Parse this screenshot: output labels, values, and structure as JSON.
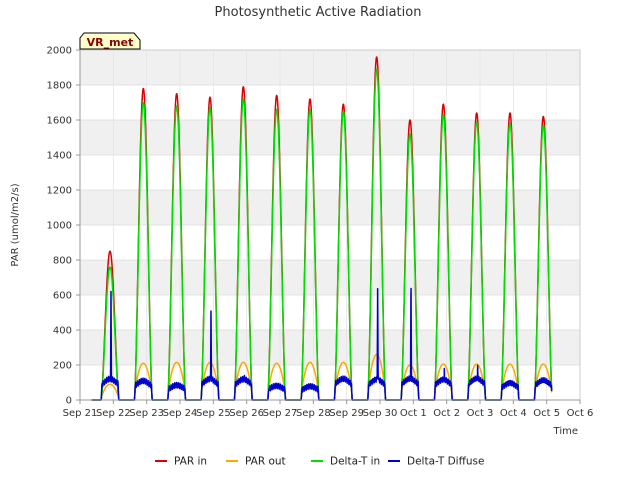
{
  "chart_data": {
    "type": "line",
    "title": "Photosynthetic Active Radiation",
    "xlabel": "Time",
    "ylabel": "PAR (umol/m2/s)",
    "badge": "VR_met",
    "ylim": [
      0,
      2000
    ],
    "yticks": [
      0,
      200,
      400,
      600,
      800,
      1000,
      1200,
      1400,
      1600,
      1800,
      2000
    ],
    "xlim": [
      0,
      15
    ],
    "xtick_labels": [
      "Sep 21",
      "Sep 22",
      "Sep 23",
      "Sep 24",
      "Sep 25",
      "Sep 26",
      "Sep 27",
      "Sep 28",
      "Sep 29",
      "Sep 30",
      "Oct 1",
      "Oct 2",
      "Oct 3",
      "Oct 4",
      "Oct 5",
      "Oct 6"
    ],
    "day_centers": [
      0.9,
      1.9,
      2.9,
      3.9,
      4.9,
      5.9,
      6.9,
      7.9,
      8.9,
      9.9,
      10.9,
      11.9,
      12.9,
      13.9
    ],
    "series": [
      {
        "name": "PAR in",
        "color": "#dd0000",
        "peaks": [
          850,
          1780,
          1750,
          1730,
          1790,
          1740,
          1720,
          1690,
          1960,
          1600,
          1690,
          1640,
          1640,
          1620
        ]
      },
      {
        "name": "PAR out",
        "color": "#ffa500",
        "peaks": [
          90,
          210,
          215,
          215,
          215,
          210,
          215,
          215,
          260,
          200,
          205,
          205,
          205,
          205
        ]
      },
      {
        "name": "Delta-T in",
        "color": "#00dd00",
        "peaks": [
          760,
          1700,
          1680,
          1670,
          1720,
          1660,
          1660,
          1650,
          1890,
          1520,
          1630,
          1590,
          1580,
          1570
        ]
      },
      {
        "name": "Delta-T Diffuse",
        "color": "#0000cc",
        "peaks": [
          640,
          110,
          85,
          560,
          160,
          80,
          80,
          145,
          690,
          740,
          180,
          230,
          100,
          110
        ]
      }
    ]
  }
}
